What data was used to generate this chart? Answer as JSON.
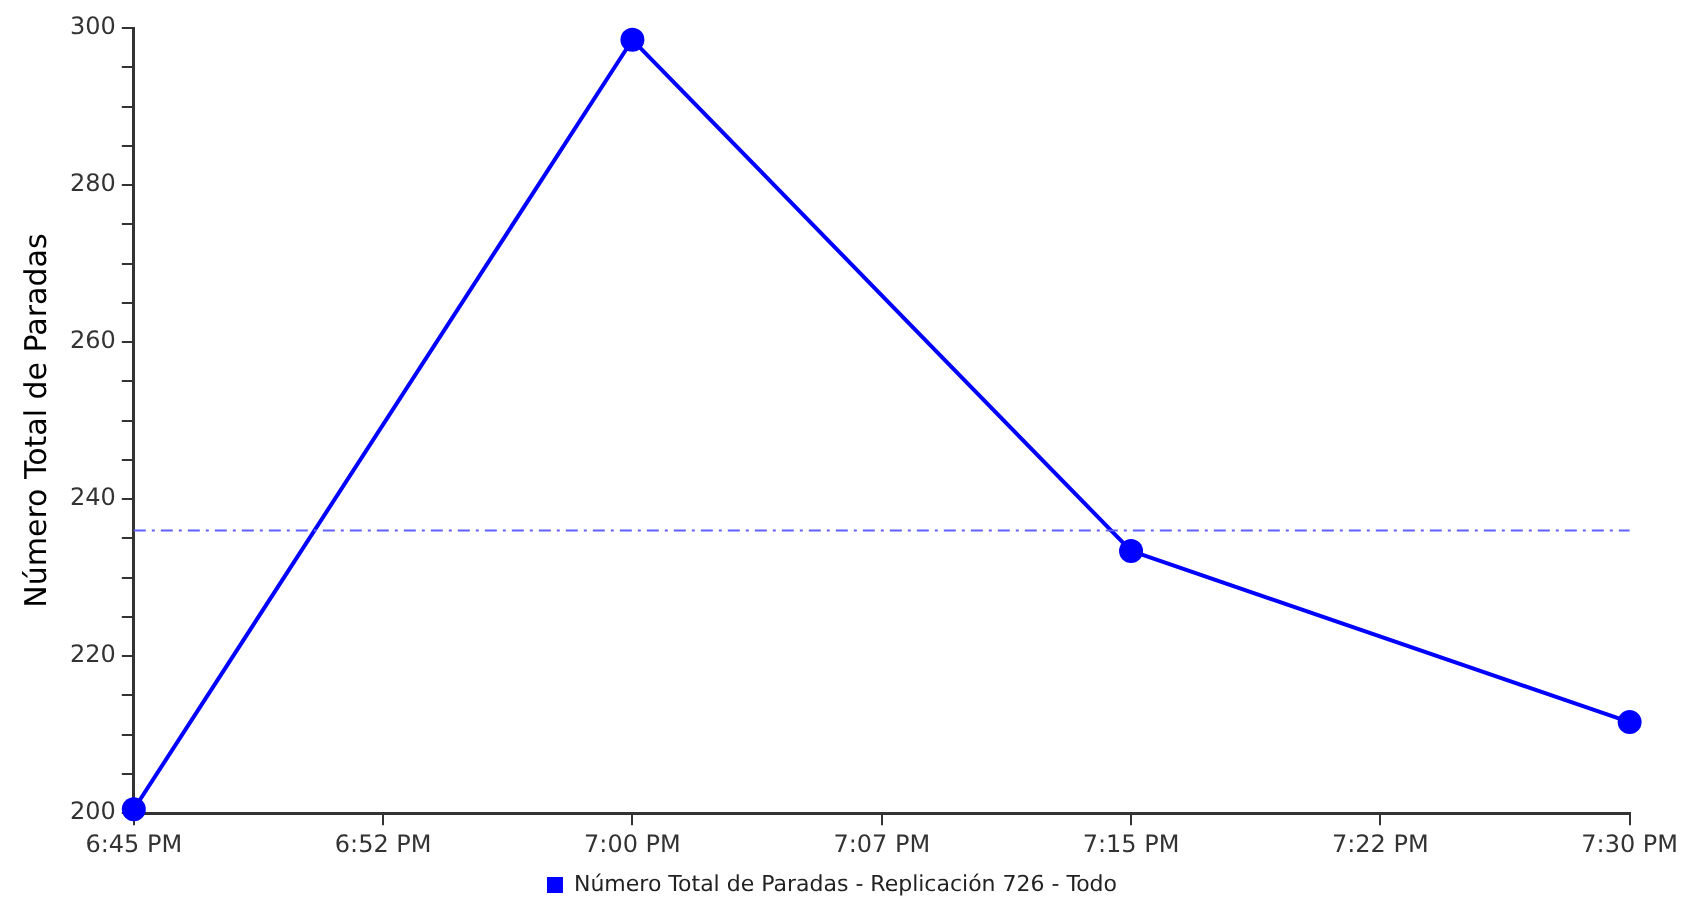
{
  "chart_data": {
    "type": "line",
    "ylabel": "Número Total de Paradas",
    "x": [
      18.75,
      19,
      19.25,
      19.5
    ],
    "series": [
      {
        "name": "Número Total de Paradas - Replicación 726 - Todo",
        "color": "#0000ff",
        "values": [
          200.5,
          298.5,
          233.4,
          211.6
        ]
      }
    ],
    "xlim": [
      18.75,
      19.5
    ],
    "xticks": [
      {
        "value": 18.75,
        "label": "6:45 PM"
      },
      {
        "value": 18.875,
        "label": "6:52 PM"
      },
      {
        "value": 19,
        "label": "7:00 PM"
      },
      {
        "value": 19.125,
        "label": "7:07 PM"
      },
      {
        "value": 19.25,
        "label": "7:15 PM"
      },
      {
        "value": 19.375,
        "label": "7:22 PM"
      },
      {
        "value": 19.5,
        "label": "7:30 PM"
      }
    ],
    "ylim": [
      200,
      300
    ],
    "yticks": [
      200,
      {
        "value": 205,
        "label": null
      },
      {
        "value": 210,
        "label": null
      },
      {
        "value": 215,
        "label": null
      },
      220,
      {
        "value": 225,
        "label": null
      },
      {
        "value": 230,
        "label": null
      },
      {
        "value": 235,
        "label": null
      },
      240,
      {
        "value": 245,
        "label": null
      },
      {
        "value": 250,
        "label": null
      },
      {
        "value": 255,
        "label": null
      },
      260,
      {
        "value": 265,
        "label": null
      },
      {
        "value": 270,
        "label": null
      },
      {
        "value": 275,
        "label": null
      },
      280,
      {
        "value": 285,
        "label": null
      },
      {
        "value": 290,
        "label": null
      },
      {
        "value": 295,
        "label": null
      },
      300
    ],
    "ref_lines": [
      {
        "axis": "y",
        "value": 236,
        "color": "#6060ff",
        "line_style": "dashdot"
      }
    ],
    "grid": false,
    "legend": "bottom",
    "marker": "circle",
    "line_style": "solid"
  }
}
